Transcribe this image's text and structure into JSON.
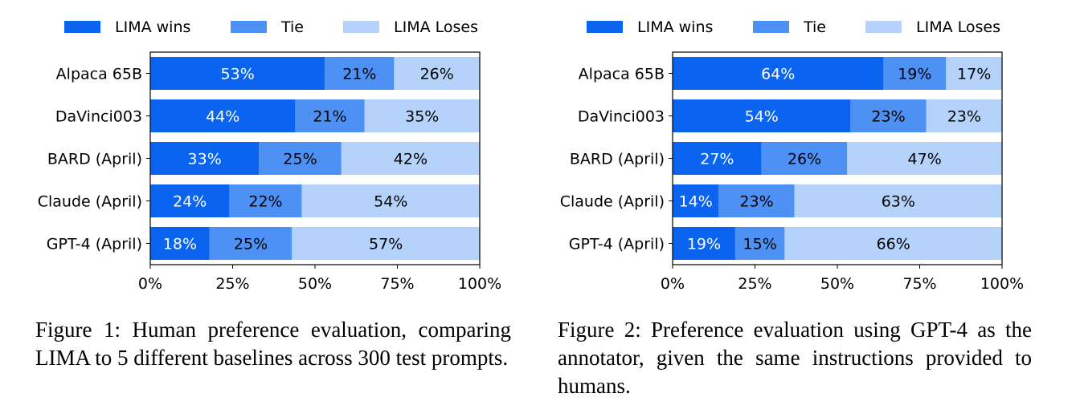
{
  "figures": [
    {
      "caption": "Figure 1: Human preference evaluation, comparing LIMA to 5 different baselines across 300 test prompts."
    },
    {
      "caption": "Figure 2: Preference evaluation using GPT-4 as the annotator, given the same instructions provided to humans."
    }
  ],
  "chart_data": [
    {
      "type": "bar",
      "orientation": "horizontal",
      "stacked": true,
      "categories": [
        "Alpaca 65B",
        "DaVinci003",
        "BARD (April)",
        "Claude (April)",
        "GPT-4 (April)"
      ],
      "series": [
        {
          "name": "LIMA wins",
          "color": "#0a64f0",
          "values": [
            53,
            44,
            33,
            24,
            18
          ]
        },
        {
          "name": "Tie",
          "color": "#4e91f5",
          "values": [
            21,
            21,
            25,
            22,
            25
          ]
        },
        {
          "name": "LIMA Loses",
          "color": "#b4d2fa",
          "values": [
            26,
            35,
            42,
            54,
            57
          ]
        }
      ],
      "value_labels": [
        [
          "53%",
          "21%",
          "26%"
        ],
        [
          "44%",
          "21%",
          "35%"
        ],
        [
          "33%",
          "25%",
          "42%"
        ],
        [
          "24%",
          "22%",
          "54%"
        ],
        [
          "18%",
          "25%",
          "57%"
        ]
      ],
      "xticks": [
        "0%",
        "25%",
        "50%",
        "75%",
        "100%"
      ],
      "xlim": [
        0,
        100
      ],
      "legend_position": "top",
      "grid": false,
      "xlabel": "",
      "ylabel": "",
      "title": ""
    },
    {
      "type": "bar",
      "orientation": "horizontal",
      "stacked": true,
      "categories": [
        "Alpaca 65B",
        "DaVinci003",
        "BARD (April)",
        "Claude (April)",
        "GPT-4 (April)"
      ],
      "series": [
        {
          "name": "LIMA wins",
          "color": "#0a64f0",
          "values": [
            64,
            54,
            27,
            14,
            19
          ]
        },
        {
          "name": "Tie",
          "color": "#4e91f5",
          "values": [
            19,
            23,
            26,
            23,
            15
          ]
        },
        {
          "name": "LIMA Loses",
          "color": "#b4d2fa",
          "values": [
            17,
            23,
            47,
            63,
            66
          ]
        }
      ],
      "value_labels": [
        [
          "64%",
          "19%",
          "17%"
        ],
        [
          "54%",
          "23%",
          "23%"
        ],
        [
          "27%",
          "26%",
          "47%"
        ],
        [
          "14%",
          "23%",
          "63%"
        ],
        [
          "19%",
          "15%",
          "66%"
        ]
      ],
      "xticks": [
        "0%",
        "25%",
        "50%",
        "75%",
        "100%"
      ],
      "xlim": [
        0,
        100
      ],
      "legend_position": "top",
      "grid": false,
      "xlabel": "",
      "ylabel": "",
      "title": ""
    }
  ]
}
